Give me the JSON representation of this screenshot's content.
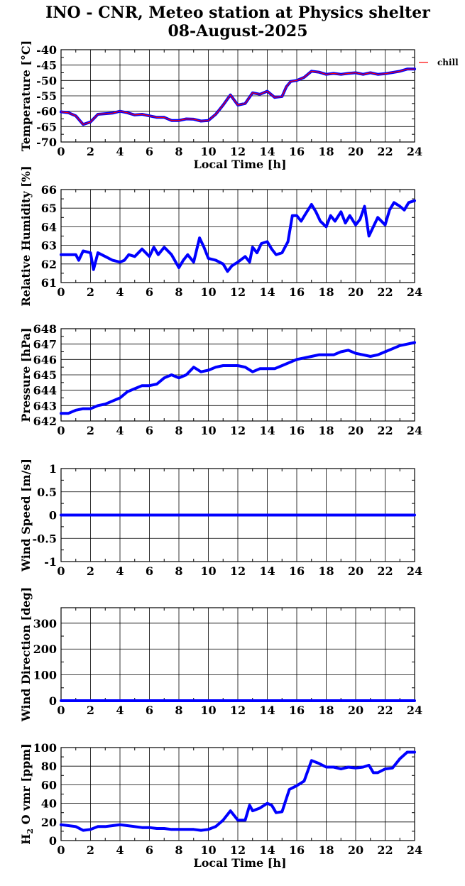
{
  "title": "INO - CNR, Meteo station at Physics shelter",
  "subtitle": "08-August-2025",
  "colors": {
    "series": "#0000ff",
    "chill": "#ff0000",
    "axis": "#000000",
    "grid": "#000000"
  },
  "chart_data": [
    {
      "id": "temperature",
      "type": "line",
      "ylabel": "Temperature [°C]",
      "xlabel": "Local Time [h]",
      "xlim": [
        0,
        24
      ],
      "ylim": [
        -70,
        -40
      ],
      "xticks": [
        "0",
        "2",
        "4",
        "6",
        "8",
        "10",
        "12",
        "14",
        "16",
        "18",
        "20",
        "22",
        "24"
      ],
      "yticks": [
        "-70",
        "-65",
        "-60",
        "-55",
        "-50",
        "-45",
        "-40"
      ],
      "grid": true,
      "legend": {
        "entries": [
          "chill"
        ],
        "placement": "outside-right"
      },
      "series": [
        {
          "x": [
            0,
            0.5,
            1,
            1.5,
            2,
            2.5,
            3,
            3.5,
            4,
            4.5,
            5,
            5.5,
            6,
            6.5,
            7,
            7.5,
            8,
            8.5,
            9,
            9.5,
            10,
            10.5,
            11,
            11.3,
            11.5,
            12,
            12.5,
            13,
            13.5,
            14,
            14.5,
            15,
            15.3,
            15.6,
            16,
            16.5,
            17,
            17.5,
            18,
            18.5,
            19,
            19.5,
            20,
            20.5,
            21,
            21.5,
            22,
            22.5,
            23,
            23.5,
            24
          ],
          "y": [
            -60.2,
            -60.5,
            -61.5,
            -64.3,
            -63.5,
            -61,
            -60.8,
            -60.6,
            -60,
            -60.5,
            -61.2,
            -61,
            -61.5,
            -62,
            -62,
            -63,
            -63,
            -62.5,
            -62.6,
            -63.2,
            -63,
            -61,
            -58,
            -56,
            -54.7,
            -58,
            -57.5,
            -54,
            -54.5,
            -53.5,
            -55.5,
            -55.2,
            -52,
            -50.3,
            -50,
            -49,
            -47,
            -47.3,
            -48,
            -47.7,
            -48,
            -47.7,
            -47.5,
            -48,
            -47.5,
            -48,
            -47.8,
            -47.4,
            -47,
            -46.3,
            -46.3
          ]
        }
      ]
    },
    {
      "id": "humidity",
      "type": "line",
      "ylabel": "Relative Humidity [%]",
      "xlabel": "",
      "xlim": [
        0,
        24
      ],
      "ylim": [
        61,
        66
      ],
      "xticks": [
        "0",
        "2",
        "4",
        "6",
        "8",
        "10",
        "12",
        "14",
        "16",
        "18",
        "20",
        "22",
        "24"
      ],
      "yticks": [
        "61",
        "62",
        "63",
        "64",
        "65",
        "66"
      ],
      "grid": true,
      "series": [
        {
          "x": [
            0,
            0.5,
            1,
            1.2,
            1.5,
            2,
            2.2,
            2.5,
            3,
            3.5,
            4,
            4.3,
            4.6,
            5,
            5.5,
            6,
            6.3,
            6.6,
            7,
            7.5,
            8,
            8.3,
            8.6,
            9,
            9.4,
            9.7,
            10,
            10.5,
            11,
            11.3,
            11.6,
            12,
            12.5,
            12.8,
            13,
            13.3,
            13.6,
            14,
            14.3,
            14.6,
            15,
            15.4,
            15.7,
            16,
            16.3,
            16.6,
            17,
            17.3,
            17.6,
            18,
            18.3,
            18.6,
            19,
            19.3,
            19.6,
            20,
            20.3,
            20.6,
            20.9,
            21.2,
            21.5,
            22,
            22.3,
            22.6,
            23,
            23.3,
            23.6,
            24
          ],
          "y": [
            62.5,
            62.5,
            62.5,
            62.2,
            62.7,
            62.6,
            61.7,
            62.6,
            62.4,
            62.2,
            62.1,
            62.2,
            62.5,
            62.4,
            62.8,
            62.4,
            62.9,
            62.5,
            62.9,
            62.5,
            61.8,
            62.2,
            62.5,
            62.1,
            63.4,
            62.9,
            62.3,
            62.2,
            62,
            61.6,
            61.9,
            62.1,
            62.4,
            62.1,
            62.9,
            62.6,
            63.1,
            63.2,
            62.8,
            62.5,
            62.6,
            63.2,
            64.6,
            64.6,
            64.3,
            64.7,
            65.2,
            64.8,
            64.3,
            64,
            64.6,
            64.3,
            64.8,
            64.2,
            64.6,
            64.1,
            64.4,
            65.1,
            63.5,
            64,
            64.5,
            64.1,
            64.9,
            65.3,
            65.1,
            64.9,
            65.3,
            65.4
          ]
        }
      ]
    },
    {
      "id": "pressure",
      "type": "line",
      "ylabel": "Pressure [hPa]",
      "xlabel": "",
      "xlim": [
        0,
        24
      ],
      "ylim": [
        642,
        648
      ],
      "xticks": [
        "0",
        "2",
        "4",
        "6",
        "8",
        "10",
        "12",
        "14",
        "16",
        "18",
        "20",
        "22",
        "24"
      ],
      "yticks": [
        "642",
        "643",
        "644",
        "645",
        "646",
        "647",
        "648"
      ],
      "grid": true,
      "series": [
        {
          "x": [
            0,
            0.5,
            1,
            1.5,
            2,
            2.5,
            3,
            3.5,
            4,
            4.5,
            5,
            5.5,
            6,
            6.5,
            7,
            7.5,
            8,
            8.5,
            9,
            9.5,
            10,
            10.5,
            11,
            11.5,
            12,
            12.5,
            13,
            13.5,
            14,
            14.5,
            15,
            15.5,
            16,
            16.5,
            17,
            17.5,
            18,
            18.5,
            19,
            19.5,
            20,
            20.5,
            21,
            21.5,
            22,
            22.5,
            23,
            23.5,
            24
          ],
          "y": [
            642.5,
            642.5,
            642.7,
            642.8,
            642.8,
            643,
            643.1,
            643.3,
            643.5,
            643.9,
            644.1,
            644.3,
            644.3,
            644.4,
            644.8,
            645,
            644.8,
            645,
            645.5,
            645.2,
            645.3,
            645.5,
            645.6,
            645.6,
            645.6,
            645.5,
            645.2,
            645.4,
            645.4,
            645.4,
            645.6,
            645.8,
            646,
            646.1,
            646.2,
            646.3,
            646.3,
            646.3,
            646.5,
            646.6,
            646.4,
            646.3,
            646.2,
            646.3,
            646.5,
            646.7,
            646.9,
            647,
            647.1
          ]
        }
      ]
    },
    {
      "id": "wind-speed",
      "type": "line",
      "ylabel": "Wind Speed [m/s]",
      "xlabel": "",
      "xlim": [
        0,
        24
      ],
      "ylim": [
        -1,
        1
      ],
      "xticks": [
        "0",
        "2",
        "4",
        "6",
        "8",
        "10",
        "12",
        "14",
        "16",
        "18",
        "20",
        "22",
        "24"
      ],
      "yticks": [
        "-1",
        "-0.5",
        "0",
        "0.5",
        "1"
      ],
      "grid": true,
      "series": [
        {
          "x": [
            0,
            24
          ],
          "y": [
            0,
            0
          ]
        }
      ]
    },
    {
      "id": "wind-direction",
      "type": "line",
      "ylabel": "Wind Direction [deg]",
      "xlabel": "",
      "xlim": [
        0,
        24
      ],
      "ylim": [
        0,
        360
      ],
      "xticks": [
        "0",
        "2",
        "4",
        "6",
        "8",
        "10",
        "12",
        "14",
        "16",
        "18",
        "20",
        "22",
        "24"
      ],
      "yticks": [
        "0",
        "100",
        "200",
        "300"
      ],
      "grid": true,
      "series": [
        {
          "x": [
            0,
            24
          ],
          "y": [
            0,
            0
          ]
        }
      ]
    },
    {
      "id": "h2o-vmr",
      "type": "line",
      "ylabel": "H2O vmr [ppm]",
      "xlabel": "Local Time [h]",
      "xlim": [
        0,
        24
      ],
      "ylim": [
        0,
        100
      ],
      "xticks": [
        "0",
        "2",
        "4",
        "6",
        "8",
        "10",
        "12",
        "14",
        "16",
        "18",
        "20",
        "22",
        "24"
      ],
      "yticks": [
        "0",
        "20",
        "40",
        "60",
        "80",
        "100"
      ],
      "grid": true,
      "series": [
        {
          "x": [
            0,
            0.5,
            1,
            1.5,
            2,
            2.5,
            3,
            3.5,
            4,
            4.5,
            5,
            5.5,
            6,
            6.5,
            7,
            7.5,
            8,
            8.5,
            9,
            9.5,
            10,
            10.5,
            11,
            11.5,
            12,
            12.5,
            12.8,
            13,
            13.5,
            14,
            14.3,
            14.6,
            15,
            15.5,
            16,
            16.5,
            17,
            17.5,
            18,
            18.5,
            19,
            19.5,
            20,
            20.5,
            20.9,
            21.2,
            21.5,
            22,
            22.5,
            23,
            23.5,
            24
          ],
          "y": [
            17,
            16,
            15,
            11,
            12,
            15,
            15,
            16,
            17,
            16,
            15,
            14,
            14,
            13,
            13,
            12,
            12,
            12,
            12,
            11,
            12,
            15,
            22,
            32,
            22,
            22,
            38,
            32,
            35,
            40,
            38,
            30,
            31,
            55,
            59,
            64,
            86,
            83,
            79,
            79,
            77,
            79,
            78,
            79,
            81,
            73,
            73,
            77,
            78,
            88,
            95,
            95
          ]
        }
      ]
    }
  ]
}
